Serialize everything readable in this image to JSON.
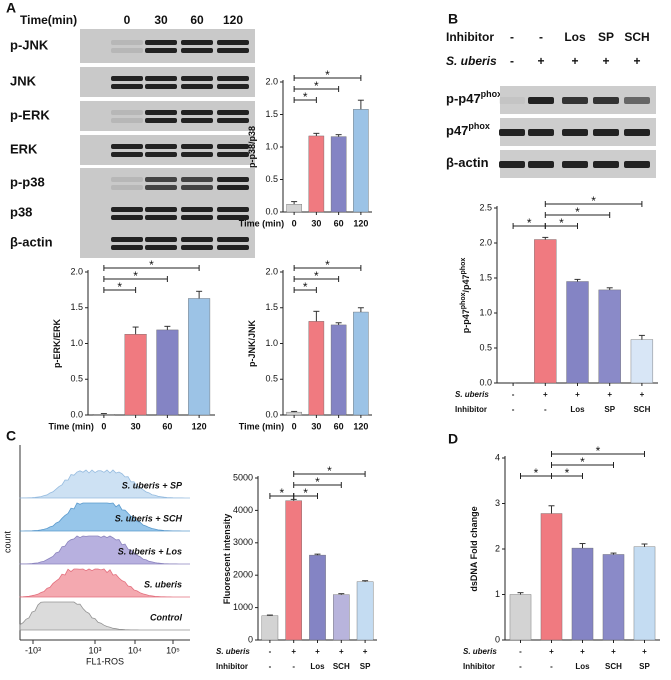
{
  "panels": [
    "A",
    "B",
    "C",
    "D"
  ],
  "blot_a": {
    "header": "Time(min)",
    "lanes": [
      "0",
      "30",
      "60",
      "120"
    ],
    "rows": [
      {
        "label": "p-JNK"
      },
      {
        "label": "JNK"
      },
      {
        "label": "p-ERK"
      },
      {
        "label": "ERK"
      },
      {
        "label": "p-p38"
      },
      {
        "label": "p38"
      },
      {
        "label": "β-actin"
      }
    ]
  },
  "blot_b": {
    "header_rows": [
      {
        "name": "Inhibitor",
        "labels": [
          "-",
          "-",
          "Los",
          "SP",
          "SCH"
        ]
      },
      {
        "name": "S. uberis",
        "labels": [
          "-",
          "+",
          "+",
          "+",
          "+"
        ]
      }
    ],
    "rows": [
      {
        "label": "p-p47",
        "sup": "phox"
      },
      {
        "label": "p47",
        "sup": "phox"
      },
      {
        "label": "β-actin"
      }
    ]
  },
  "flow": {
    "ylabel": "count",
    "xlabel": "FL1-ROS",
    "xtick_labels": [
      "-10³",
      "10³",
      "10⁴",
      "10⁵"
    ],
    "samples": [
      "S. uberis + SP",
      "S. uberis + SCH",
      "S. uberis + Los",
      "S. uberis",
      "Control"
    ]
  },
  "chart_data": [
    {
      "type": "bar",
      "ylabel": [
        "p-p38/p38"
      ],
      "xlabel": "Time (min)",
      "categories": [
        "0",
        "30",
        "60",
        "120"
      ],
      "values": [
        0.12,
        1.17,
        1.16,
        1.58
      ],
      "errors": [
        0.04,
        0.04,
        0.03,
        0.14
      ],
      "colors": [
        "#d3d3d3",
        "#f07a80",
        "#8484c4",
        "#9cc3e6"
      ],
      "ylim": [
        0,
        2
      ],
      "yticks": [
        {
          "value": 0,
          "label": "0.0"
        },
        0.5,
        {
          "value": 1,
          "label": "1.0"
        },
        1.5,
        {
          "value": 2,
          "label": "2.0"
        }
      ],
      "annotations": [
        "*",
        "*",
        "*"
      ]
    },
    {
      "type": "bar",
      "ylabel": [
        "p-ERK/ERK"
      ],
      "xlabel": "Time (min)",
      "categories": [
        "0",
        "30",
        "60",
        "120"
      ],
      "values": [
        0.01,
        1.13,
        1.19,
        1.63
      ],
      "errors": [
        0.01,
        0.1,
        0.05,
        0.1
      ],
      "colors": [
        "#d3d3d3",
        "#f07a80",
        "#8484c4",
        "#9cc3e6"
      ],
      "ylim": [
        0,
        2
      ],
      "yticks": [
        {
          "value": 0,
          "label": "0.0"
        },
        0.5,
        {
          "value": 1,
          "label": "1.0"
        },
        1.5,
        {
          "value": 2,
          "label": "2.0"
        }
      ],
      "annotations": [
        "*",
        "*",
        "*"
      ]
    },
    {
      "type": "bar",
      "ylabel": [
        "p-JNK/JNK"
      ],
      "xlabel": "Time (min)",
      "categories": [
        "0",
        "30",
        "60",
        "120"
      ],
      "values": [
        0.04,
        1.31,
        1.26,
        1.44
      ],
      "errors": [
        0.01,
        0.14,
        0.03,
        0.06
      ],
      "colors": [
        "#d3d3d3",
        "#f07a80",
        "#8484c4",
        "#9cc3e6"
      ],
      "ylim": [
        0,
        2
      ],
      "yticks": [
        {
          "value": 0,
          "label": "0.0"
        },
        0.5,
        {
          "value": 1,
          "label": "1.0"
        },
        1.5,
        {
          "value": 2,
          "label": "2.0"
        }
      ],
      "annotations": [
        "*",
        "*",
        "*"
      ]
    },
    {
      "type": "bar",
      "ylabel": [
        "p-p47",
        "phox",
        "/p47",
        "phox"
      ],
      "condition_rows": [
        {
          "name": "S. uberis",
          "labels": [
            "-",
            "+",
            "+",
            "+",
            "+"
          ]
        },
        {
          "name": "Inhibitor",
          "labels": [
            "-",
            "-",
            "Los",
            "SP",
            "SCH"
          ]
        }
      ],
      "values": [
        0,
        2.05,
        1.45,
        1.33,
        0.62
      ],
      "errors": [
        0,
        0.03,
        0.03,
        0.03,
        0.06
      ],
      "colors": [
        "#d3d3d3",
        "#f07a80",
        "#8484c4",
        "#8a8ac8",
        "#d8e6f6"
      ],
      "ylim": [
        0,
        2.5
      ],
      "yticks": [
        {
          "value": 0,
          "label": "0.0"
        },
        0.5,
        {
          "value": 1,
          "label": "1.0"
        },
        1.5,
        {
          "value": 2,
          "label": "2.0"
        },
        2.5
      ],
      "annotations": [
        "*",
        "*",
        "*",
        "*"
      ]
    },
    {
      "type": "bar",
      "ylabel": [
        "Fluorescent intensity"
      ],
      "condition_rows": [
        {
          "name": "S. uberis",
          "labels": [
            "-",
            "+",
            "+",
            "+",
            "+"
          ]
        },
        {
          "name": "Inhibitor",
          "labels": [
            "-",
            "-",
            "Los",
            "SCH",
            "SP"
          ]
        }
      ],
      "values": [
        750,
        4300,
        2620,
        1400,
        1800
      ],
      "errors": [
        20,
        40,
        30,
        30,
        30
      ],
      "colors": [
        "#d3d3d3",
        "#f07a80",
        "#8484c4",
        "#b8b4dc",
        "#c4dcf2"
      ],
      "ylim": [
        0,
        5000
      ],
      "yticks": [
        0,
        1000,
        2000,
        3000,
        4000,
        5000
      ],
      "annotations": [
        "*",
        "*",
        "*",
        "*"
      ]
    },
    {
      "type": "bar",
      "ylabel": [
        "dsDNA Fold change"
      ],
      "condition_rows": [
        {
          "name": "S. uberis",
          "labels": [
            "-",
            "+",
            "+",
            "+",
            "+"
          ]
        },
        {
          "name": "Inhibitor",
          "labels": [
            "-",
            "-",
            "Los",
            "SCH",
            "SP"
          ]
        }
      ],
      "values": [
        1.0,
        2.78,
        2.02,
        1.88,
        2.05
      ],
      "errors": [
        0.04,
        0.17,
        0.1,
        0.03,
        0.06
      ],
      "colors": [
        "#d3d3d3",
        "#f07a80",
        "#8484c4",
        "#8a8ac8",
        "#c4dcf2"
      ],
      "ylim": [
        0,
        4
      ],
      "yticks": [
        0,
        1,
        2,
        3,
        4
      ],
      "annotations": [
        "*",
        "*",
        "*",
        "*"
      ]
    }
  ]
}
